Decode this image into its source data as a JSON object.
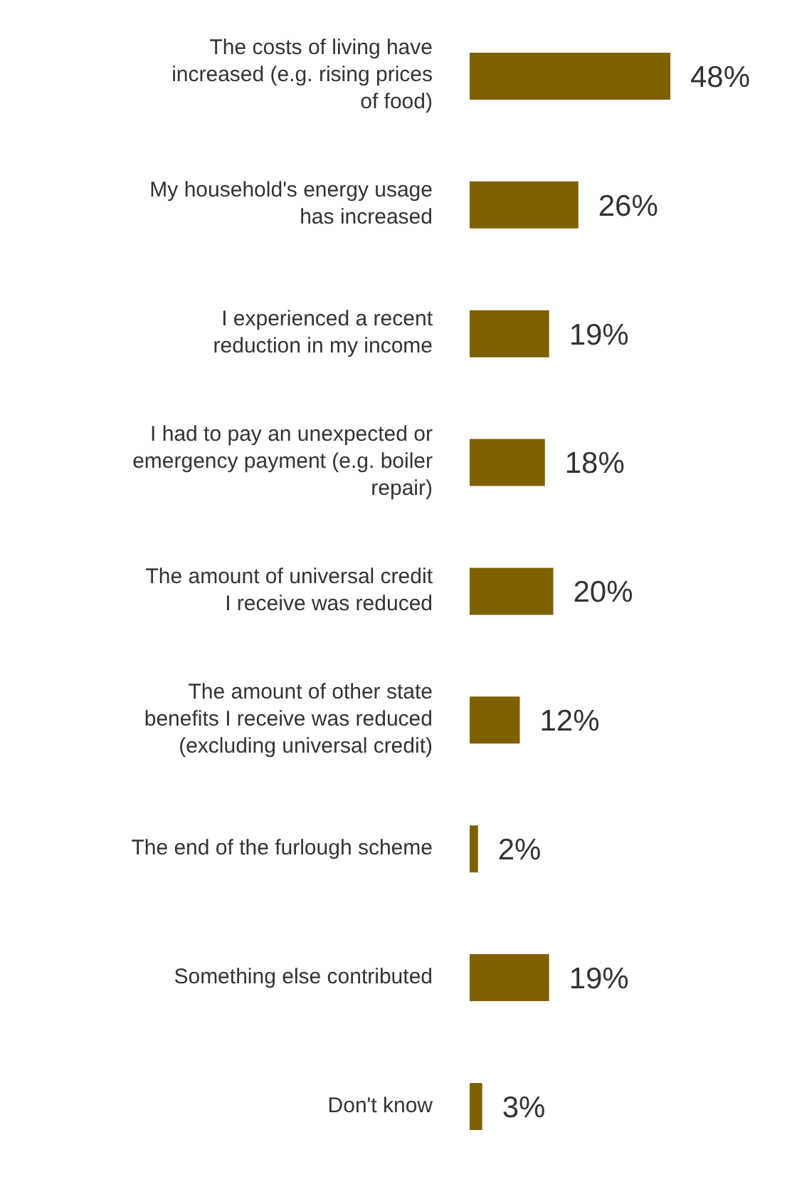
{
  "chart_data": {
    "type": "bar",
    "orientation": "horizontal",
    "value_labels": [
      "48%",
      "26%",
      "19%",
      "18%",
      "20%",
      "12%",
      "2%",
      "19%",
      "3%"
    ],
    "color": "#7f6000",
    "categories": [
      "The costs of living have increased (e.g. rising prices of food)",
      "My household's energy usage has increased",
      "I experienced a recent reduction in my income",
      "I had to pay an unexpected or emergency payment (e.g. boiler repair)",
      "The amount of universal credit I receive was reduced",
      "The amount of other state benefits I receive was reduced (excluding universal credit)",
      "The end of the furlough scheme",
      "Something else contributed",
      "Don't know"
    ],
    "values": [
      48,
      26,
      19,
      18,
      20,
      12,
      2,
      19,
      3
    ]
  }
}
